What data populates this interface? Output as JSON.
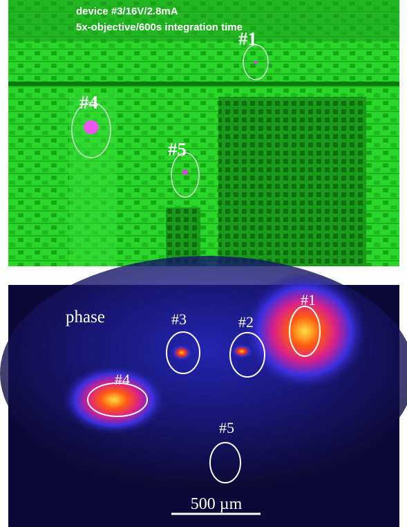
{
  "top_panel": {
    "caption_lines": [
      "device #3/16V/2.8mA",
      "5x-objective/600s integration time"
    ],
    "labels": [
      "#1",
      "#4",
      "#5"
    ]
  },
  "bottom_panel": {
    "mode_label": "phase",
    "labels": [
      "#1",
      "#3",
      "#2",
      "#4",
      "#5"
    ],
    "scale_bar": "500 µm"
  }
}
